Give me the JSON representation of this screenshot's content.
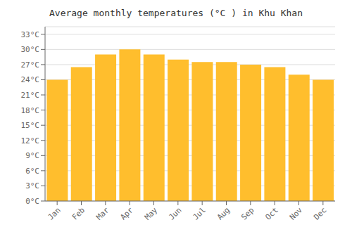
{
  "chart_data": {
    "type": "bar",
    "title": "Average monthly temperatures (°C ) in Khu Khan",
    "categories": [
      "Jan",
      "Feb",
      "Mar",
      "Apr",
      "May",
      "Jun",
      "Jul",
      "Aug",
      "Sep",
      "Oct",
      "Nov",
      "Dec"
    ],
    "values": [
      24.0,
      26.5,
      29.0,
      30.0,
      29.0,
      28.0,
      27.5,
      27.5,
      27.0,
      26.5,
      25.0,
      24.0
    ],
    "color": "#FFBE2D",
    "ylim": [
      0,
      34.5
    ],
    "yticks": [
      {
        "value": 0,
        "label": "0°C"
      },
      {
        "value": 3,
        "label": "3°C"
      },
      {
        "value": 6,
        "label": "6°C"
      },
      {
        "value": 9,
        "label": "9°C"
      },
      {
        "value": 12,
        "label": "12°C"
      },
      {
        "value": 15,
        "label": "15°C"
      },
      {
        "value": 18,
        "label": "18°C"
      },
      {
        "value": 21,
        "label": "21°C"
      },
      {
        "value": 24,
        "label": "24°C"
      },
      {
        "value": 27,
        "label": "27°C"
      },
      {
        "value": 30,
        "label": "30°C"
      },
      {
        "value": 33,
        "label": "33°C"
      }
    ],
    "grid": true
  }
}
